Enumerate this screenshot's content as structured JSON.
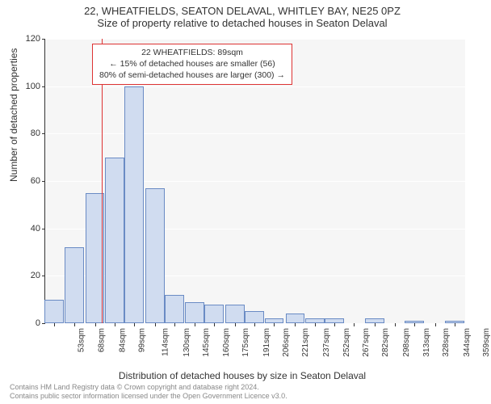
{
  "chart": {
    "type": "histogram",
    "title_line1": "22, WHEATFIELDS, SEATON DELAVAL, WHITLEY BAY, NE25 0PZ",
    "title_line2": "Size of property relative to detached houses in Seaton Delaval",
    "title_fontsize": 13,
    "background_color": "#ffffff",
    "plot_bg_color": "#f6f6f6",
    "grid_color": "#ffffff",
    "axis_color": "#333333",
    "bar_fill": "#d0dcf0",
    "bar_border": "#6a8bc4",
    "vline_color": "#dd3333",
    "vline_x_sqm": 89,
    "ylabel": "Number of detached properties",
    "xlabel": "Distribution of detached houses by size in Seaton Delaval",
    "label_fontsize": 12,
    "tick_fontsize": 11,
    "ylim": [
      0,
      120
    ],
    "yticks": [
      0,
      20,
      40,
      60,
      80,
      100,
      120
    ],
    "x_range_sqm": [
      46,
      367
    ],
    "x_categories": [
      "53sqm",
      "68sqm",
      "84sqm",
      "99sqm",
      "114sqm",
      "130sqm",
      "145sqm",
      "160sqm",
      "175sqm",
      "191sqm",
      "206sqm",
      "221sqm",
      "237sqm",
      "252sqm",
      "267sqm",
      "282sqm",
      "298sqm",
      "313sqm",
      "328sqm",
      "344sqm",
      "359sqm"
    ],
    "x_category_sqm": [
      53,
      68,
      84,
      99,
      114,
      130,
      145,
      160,
      175,
      191,
      206,
      221,
      237,
      252,
      267,
      282,
      298,
      313,
      328,
      344,
      359
    ],
    "bar_values": [
      10,
      32,
      55,
      70,
      100,
      57,
      12,
      9,
      8,
      8,
      5,
      2,
      4,
      2,
      2,
      0,
      2,
      0,
      1,
      0,
      1
    ],
    "bar_width_ratio": 0.98,
    "annotation": {
      "line1": "22 WHEATFIELDS: 89sqm",
      "line2": "← 15% of detached houses are smaller (56)",
      "line3": "80% of semi-detached houses are larger (300) →",
      "border_color": "#dd3333",
      "bg_color": "#ffffff",
      "fontsize": 10.5
    },
    "footer_line1": "Contains HM Land Registry data © Crown copyright and database right 2024.",
    "footer_line2": "Contains public sector information licensed under the Open Government Licence v3.0.",
    "footer_color": "#888888",
    "footer_fontsize": 9
  }
}
